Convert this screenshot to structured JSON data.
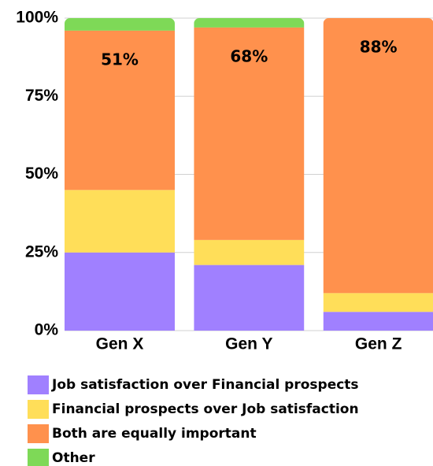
{
  "chart_data": {
    "type": "stacked_bar",
    "categories": [
      "Gen X",
      "Gen Y",
      "Gen Z"
    ],
    "series": [
      {
        "name": "Job satisfaction over Financial prospects",
        "color": "#a080ff",
        "values": [
          25,
          21,
          6
        ]
      },
      {
        "name": "Financial prospects over Job satisfaction",
        "color": "#ffde59",
        "values": [
          20,
          8,
          6
        ]
      },
      {
        "name": "Both are equally important",
        "color": "#ff914d",
        "values": [
          51,
          68,
          88
        ],
        "value_labels": [
          "51%",
          "68%",
          "88%"
        ]
      },
      {
        "name": "Other",
        "color": "#7ed957",
        "values": [
          4,
          3,
          0
        ]
      }
    ],
    "ylim": [
      0,
      100
    ],
    "yticks": [
      {
        "value": 0,
        "label": "0%"
      },
      {
        "value": 25,
        "label": "25%"
      },
      {
        "value": 50,
        "label": "50%"
      },
      {
        "value": 75,
        "label": "75%"
      },
      {
        "value": 100,
        "label": "100%"
      }
    ],
    "grid": true
  }
}
